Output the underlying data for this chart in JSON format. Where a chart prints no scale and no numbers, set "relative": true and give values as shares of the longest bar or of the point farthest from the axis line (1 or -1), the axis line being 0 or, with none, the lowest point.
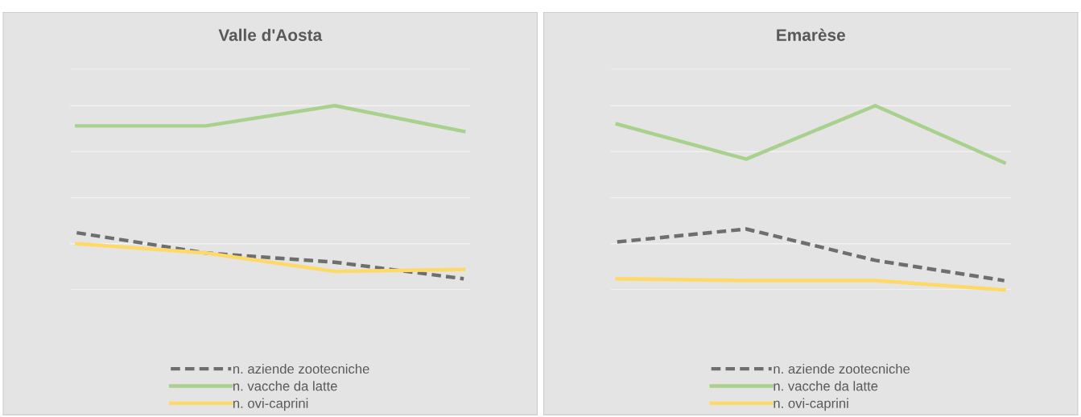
{
  "chart_data": [
    {
      "type": "line",
      "title": "Valle d'Aosta",
      "relative": true,
      "categories": [
        null,
        null,
        null,
        null
      ],
      "grid": "y",
      "legend": "bottom",
      "marker": "none",
      "series": [
        {
          "name": "n. aziende zootecniche",
          "color": "#6e6e6e",
          "line_style": "dashed",
          "values": [
            0.31,
            0.2,
            0.15,
            0.06
          ]
        },
        {
          "name": "n. vacche da latte",
          "color": "#a9d18e",
          "line_style": "solid",
          "values": [
            0.89,
            0.89,
            1,
            0.86
          ]
        },
        {
          "name": "n. ovi-caprini",
          "color": "#ffd966",
          "line_style": "solid",
          "values": [
            0.25,
            0.2,
            0.1,
            0.11
          ]
        }
      ]
    },
    {
      "type": "line",
      "title": "Emarèse",
      "relative": true,
      "categories": [
        null,
        null,
        null,
        null
      ],
      "grid": "y",
      "legend": "bottom",
      "marker": "none",
      "series": [
        {
          "name": "n. aziende zootecniche",
          "color": "#6e6e6e",
          "line_style": "dashed",
          "values": [
            0.26,
            0.33,
            0.16,
            0.05
          ]
        },
        {
          "name": "n. vacche da latte",
          "color": "#a9d18e",
          "line_style": "solid",
          "values": [
            0.9,
            0.71,
            1,
            0.69
          ]
        },
        {
          "name": "n. ovi-caprini",
          "color": "#ffd966",
          "line_style": "solid",
          "values": [
            0.06,
            0.05,
            0.05,
            0
          ]
        }
      ]
    }
  ]
}
